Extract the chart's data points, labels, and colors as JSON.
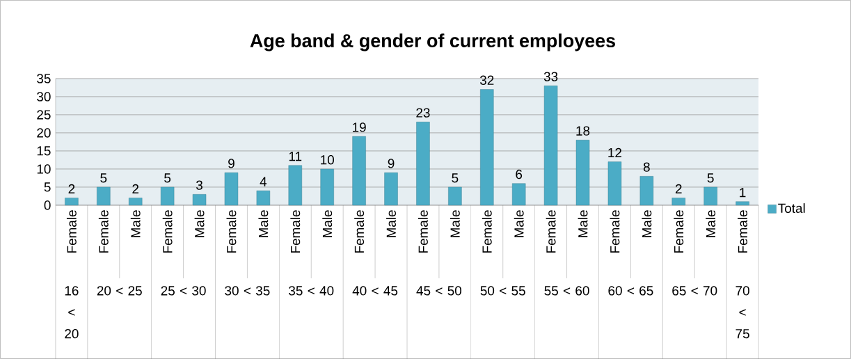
{
  "chart_data": {
    "type": "bar",
    "title": "Age band & gender of current employees",
    "categories": [
      "Female",
      "Female",
      "Male",
      "Female",
      "Male",
      "Female",
      "Male",
      "Female",
      "Male",
      "Female",
      "Male",
      "Female",
      "Male",
      "Female",
      "Male",
      "Female",
      "Male",
      "Female",
      "Male",
      "Female",
      "Male",
      "Female"
    ],
    "series": [
      {
        "name": "Total",
        "color": "#4bacc6",
        "values": [
          2,
          5,
          2,
          5,
          3,
          9,
          4,
          11,
          10,
          19,
          9,
          23,
          5,
          32,
          6,
          33,
          18,
          12,
          8,
          2,
          5,
          1
        ]
      }
    ],
    "annotations": [
      "16 < 20",
      "20 < 25",
      "25 < 30",
      "30 < 35",
      "35 < 40",
      "40 < 45",
      "45 < 50",
      "50 < 55",
      "55 < 60",
      "60 < 65",
      "65 < 70",
      "70 < 75"
    ],
    "ylim": [
      0,
      35
    ],
    "yticks": [
      0,
      5,
      10,
      15,
      20,
      25,
      30,
      35
    ],
    "grid": "y",
    "legend": "right",
    "data_labels": true
  }
}
